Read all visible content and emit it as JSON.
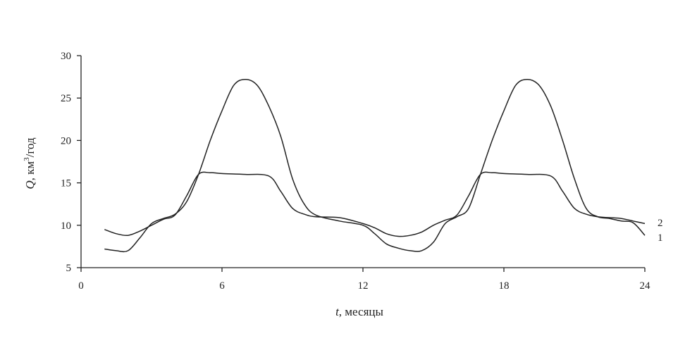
{
  "chart_data": {
    "type": "line",
    "xlabel_var": "t",
    "xlabel_rest": ", месяцы",
    "ylabel_var": "Q",
    "ylabel_rest": ", км",
    "ylabel_sup": "3",
    "ylabel_tail": "/год",
    "xlim": [
      0,
      24
    ],
    "ylim": [
      5,
      30
    ],
    "x_ticks": [
      0,
      6,
      12,
      18,
      24
    ],
    "y_ticks": [
      5,
      10,
      15,
      20,
      25,
      30
    ],
    "grid": false,
    "series": [
      {
        "name": "1",
        "x": [
          1,
          1.5,
          2,
          2.5,
          3,
          3.5,
          4,
          4.5,
          5,
          5.5,
          6,
          6.5,
          7,
          7.5,
          8,
          8.5,
          9,
          9.5,
          10,
          11,
          12,
          12.5,
          13,
          13.5,
          14,
          14.5,
          15,
          15.5,
          16,
          16.5,
          17,
          17.5,
          18,
          18.5,
          19,
          19.5,
          20,
          20.5,
          21,
          21.5,
          22,
          22.5,
          23,
          23.5,
          24
        ],
        "values": [
          7.2,
          7.0,
          7.0,
          8.5,
          10.2,
          10.8,
          11.3,
          12.8,
          16.0,
          20.0,
          23.5,
          26.5,
          27.2,
          26.5,
          24.0,
          20.5,
          15.5,
          12.5,
          11.2,
          10.5,
          10.0,
          9.0,
          7.8,
          7.3,
          7.0,
          7.0,
          8.0,
          10.2,
          11.0,
          12.0,
          16.0,
          20.0,
          23.5,
          26.5,
          27.2,
          26.5,
          24.0,
          20.0,
          15.5,
          12.0,
          11.0,
          10.8,
          10.5,
          10.3,
          8.8
        ]
      },
      {
        "name": "2",
        "x": [
          1,
          1.5,
          2,
          2.5,
          3,
          3.5,
          4,
          4.5,
          5,
          5.5,
          6,
          7,
          8,
          8.5,
          9,
          9.5,
          10,
          11,
          12,
          12.5,
          13,
          13.5,
          14,
          14.5,
          15,
          15.5,
          16,
          16.5,
          17,
          17.5,
          18,
          19,
          20,
          20.5,
          21,
          21.5,
          22,
          22.5,
          23,
          23.5,
          24
        ],
        "values": [
          9.5,
          9.0,
          8.8,
          9.3,
          10.0,
          10.7,
          11.2,
          13.5,
          16.0,
          16.2,
          16.1,
          16.0,
          15.8,
          14.0,
          12.0,
          11.3,
          11.0,
          10.9,
          10.2,
          9.7,
          9.0,
          8.7,
          8.8,
          9.2,
          10.0,
          10.6,
          11.2,
          13.5,
          16.0,
          16.2,
          16.1,
          16.0,
          15.8,
          14.0,
          12.0,
          11.3,
          11.0,
          10.9,
          10.8,
          10.5,
          10.2
        ]
      }
    ]
  }
}
